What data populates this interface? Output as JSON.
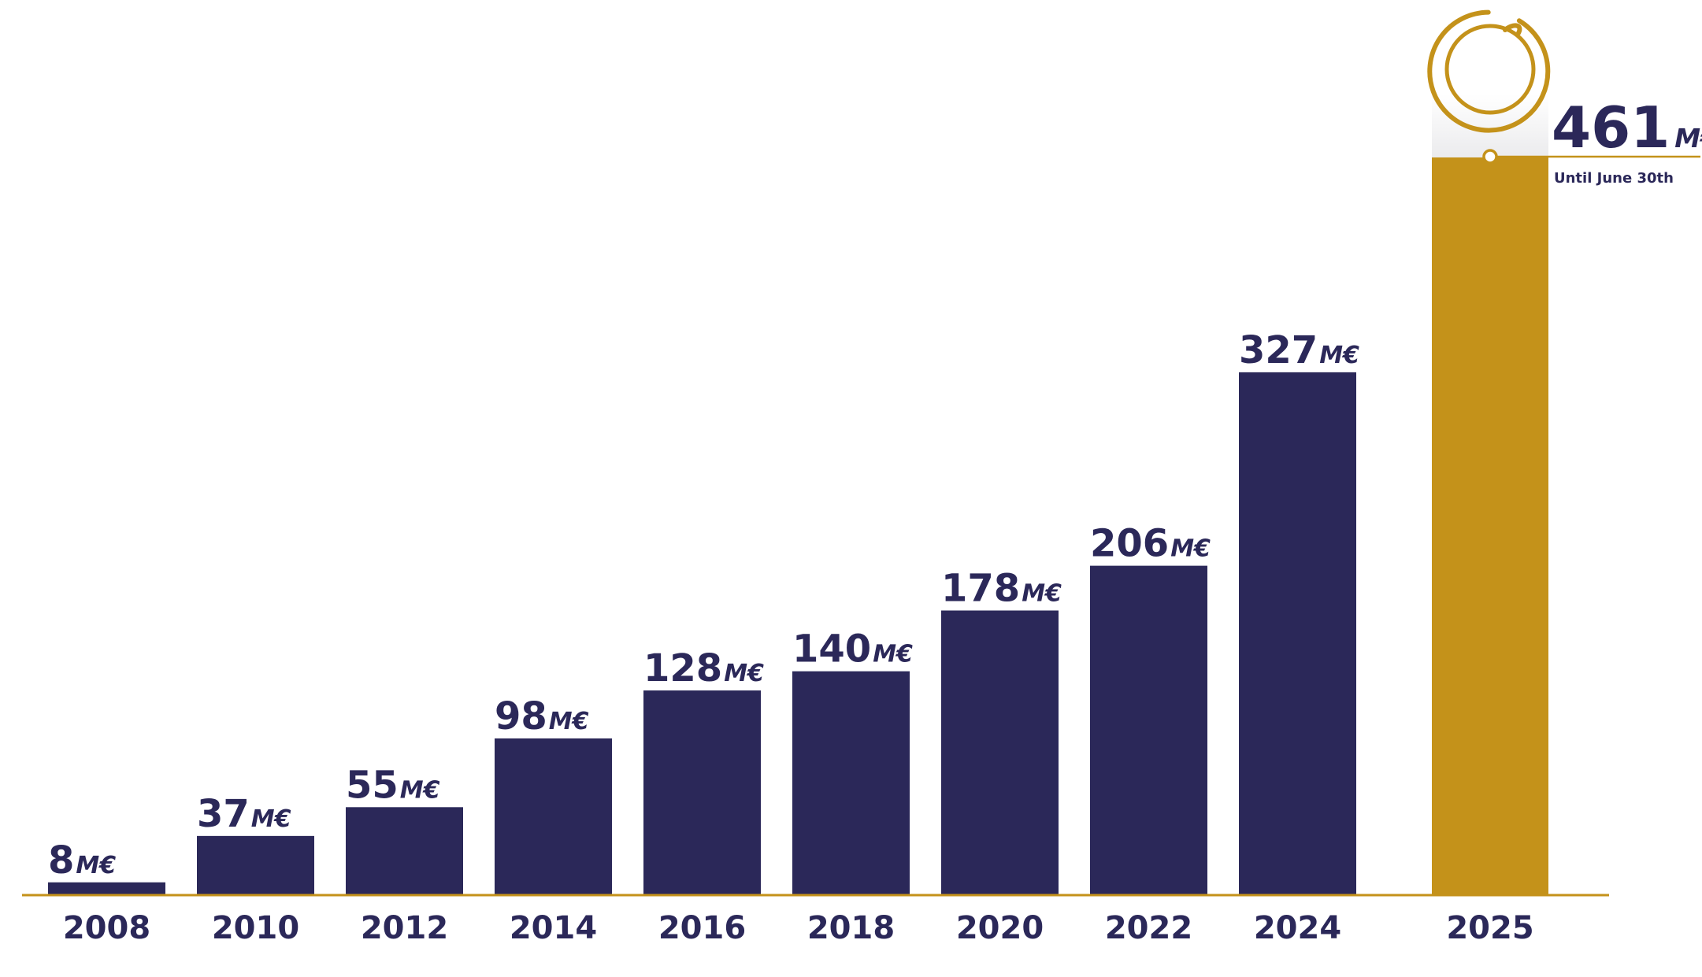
{
  "chart_data": {
    "type": "bar",
    "categories": [
      "2008",
      "2010",
      "2012",
      "2014",
      "2016",
      "2018",
      "2020",
      "2022",
      "2024",
      "2025"
    ],
    "values": [
      8,
      37,
      55,
      98,
      128,
      140,
      178,
      206,
      327,
      461
    ],
    "value_labels": [
      "8",
      "37",
      "55",
      "98",
      "128",
      "140",
      "178",
      "206",
      "327",
      "461"
    ],
    "unit": "M€",
    "highlight": {
      "category": "2025",
      "value_label": "461",
      "unit": "M€",
      "note": "Until June 30th"
    },
    "colors": {
      "bar": "#2b2859",
      "highlight_bar": "#c4921a",
      "baseline": "#c4921a",
      "text": "#2b2859"
    },
    "ylim": [
      0,
      480
    ],
    "grid": false,
    "xlabel": "",
    "ylabel": ""
  },
  "logo": {
    "icon": "circle-swirl-logo"
  }
}
